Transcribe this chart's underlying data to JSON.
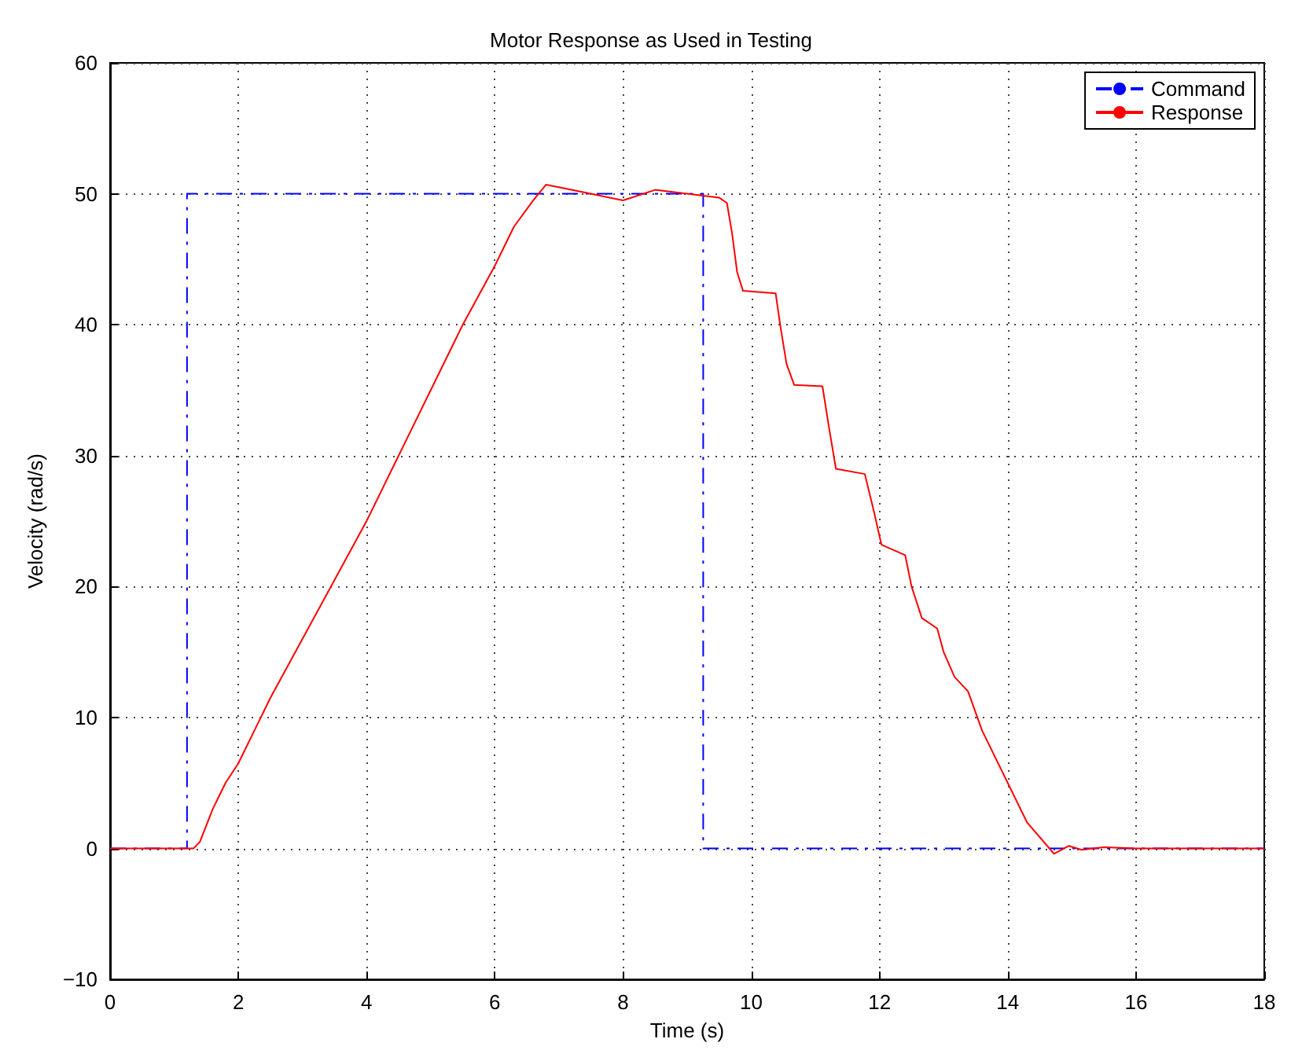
{
  "chart_data": {
    "type": "line",
    "title": "Motor Response as Used in Testing",
    "xlabel": "Time (s)",
    "ylabel": "Velocity (rad/s)",
    "xlim": [
      0,
      18
    ],
    "xticks": [
      0,
      2,
      4,
      6,
      8,
      10,
      12,
      14,
      16,
      18
    ],
    "ylim": [
      -10,
      60
    ],
    "yticks": [
      -10,
      0,
      10,
      20,
      30,
      40,
      50,
      60
    ],
    "grid": true,
    "legend": "top right",
    "marker": "none",
    "series": [
      {
        "name": "Command",
        "color": "#0000ff",
        "line_style": "dashed",
        "x": [
          0,
          1.2,
          1.2,
          9.25,
          9.25,
          18
        ],
        "values": [
          0,
          0,
          50,
          50,
          0,
          0
        ]
      },
      {
        "name": "Response",
        "color": "#ff0000",
        "line_style": "solid",
        "x": [
          0,
          1.3,
          1.4,
          1.6,
          1.8,
          2,
          2.3,
          2.5,
          3,
          3.5,
          4,
          4.5,
          5,
          5.5,
          6,
          6.3,
          6.6,
          6.8,
          7,
          7.5,
          8,
          8.5,
          9,
          9.5,
          9.62,
          9.7,
          9.78,
          9.87,
          10.38,
          10.45,
          10.55,
          10.67,
          11.11,
          11.2,
          11.32,
          11.77,
          11.9,
          12.03,
          12.4,
          12.5,
          12.66,
          12.9,
          13,
          13.17,
          13.38,
          13.6,
          14,
          14.3,
          14.72,
          14.95,
          15.15,
          15.5,
          16,
          18
        ],
        "values": [
          0,
          0,
          0.5,
          3,
          5,
          6.5,
          9.5,
          11.5,
          16,
          20.5,
          25,
          30,
          35,
          40,
          44.5,
          47.5,
          49.5,
          50.7,
          50.5,
          50,
          49.5,
          50.3,
          50,
          49.7,
          49.3,
          47,
          44,
          42.6,
          42.4,
          40,
          37,
          35.4,
          35.3,
          32.5,
          29,
          28.6,
          26,
          23.2,
          22.4,
          20,
          17.6,
          16.8,
          15,
          13.1,
          12,
          9,
          5,
          2,
          -0.4,
          0.2,
          -0.1,
          0.1,
          0,
          0
        ]
      }
    ]
  }
}
